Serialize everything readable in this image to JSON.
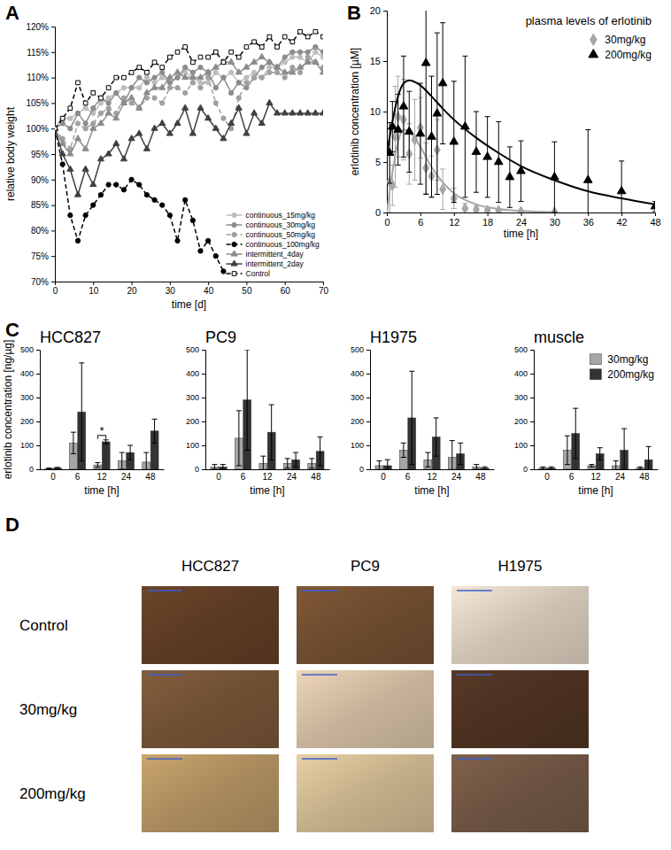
{
  "panels": [
    "A",
    "B",
    "C",
    "D"
  ],
  "chart_data": [
    {
      "type": "line",
      "xlabel": "time [d]",
      "ylabel": "relative body weight",
      "x": [
        0,
        2,
        4,
        6,
        8,
        10,
        12,
        14,
        16,
        18,
        20,
        22,
        24,
        26,
        28,
        30,
        32,
        34,
        36,
        38,
        40,
        42,
        44,
        46,
        48,
        50,
        52,
        54,
        56,
        58,
        60,
        62,
        64,
        66,
        68,
        70
      ],
      "xlim": [
        0,
        70
      ],
      "xticks": [
        0,
        10,
        20,
        30,
        40,
        50,
        60,
        70
      ],
      "ylim": [
        70,
        120
      ],
      "yticks": [
        {
          "value": 70,
          "label": "70%"
        },
        {
          "value": 75,
          "label": "75%"
        },
        {
          "value": 80,
          "label": "80%"
        },
        {
          "value": 85,
          "label": "85%"
        },
        {
          "value": 90,
          "label": "90%"
        },
        {
          "value": 95,
          "label": "95%"
        },
        {
          "value": 100,
          "label": "100%"
        },
        {
          "value": 105,
          "label": "105%"
        },
        {
          "value": 110,
          "label": "110%"
        },
        {
          "value": 115,
          "label": "115%"
        },
        {
          "value": 120,
          "label": "120%"
        }
      ],
      "legend": "bottom-right",
      "series": [
        {
          "name": "continuous_15mg/kg",
          "color": "#bdbdbd",
          "marker": "circle",
          "line_style": "solid",
          "values": [
            100,
            102,
            102,
            103,
            104,
            103,
            105,
            106,
            107,
            108,
            108,
            108,
            110,
            109,
            110,
            109,
            110,
            111,
            110,
            109,
            109,
            111,
            110,
            111,
            109,
            110,
            111,
            110,
            112,
            112,
            113,
            114,
            114,
            113,
            115,
            114
          ]
        },
        {
          "name": "continuous_30mg/kg",
          "color": "#8c8c8c",
          "marker": "circle",
          "line_style": "solid",
          "values": [
            100,
            101,
            100,
            103,
            101,
            104,
            106,
            105,
            107,
            105,
            108,
            110,
            109,
            110,
            111,
            109,
            110,
            112,
            111,
            112,
            111,
            108,
            110,
            107,
            109,
            108,
            110,
            112,
            113,
            112,
            114,
            115,
            115,
            115,
            116,
            115
          ]
        },
        {
          "name": "continuous_50mg/kg",
          "color": "#a0a0a0",
          "marker": "circle",
          "line_style": "dashed",
          "values": [
            100,
            98,
            96,
            101,
            100,
            101,
            103,
            104,
            103,
            106,
            105,
            104,
            106,
            106,
            105,
            108,
            108,
            107,
            109,
            108,
            110,
            105,
            102,
            100,
            106,
            109,
            110,
            110,
            111,
            111,
            110,
            112,
            111,
            114,
            113,
            112
          ]
        },
        {
          "name": "continuous_100mg/kg",
          "color": "#000000",
          "marker": "circle",
          "line_style": "dashed",
          "values": [
            100,
            93,
            83,
            78,
            83,
            85,
            87,
            89,
            89,
            88,
            90,
            89,
            87,
            86,
            85,
            83,
            78,
            86,
            82,
            76,
            78,
            75,
            72,
            null,
            null,
            null,
            null,
            null,
            null,
            null,
            null,
            null,
            null,
            null,
            null,
            null
          ]
        },
        {
          "name": "intermittent_4day",
          "color": "#8c8c8c",
          "marker": "triangle",
          "line_style": "solid",
          "values": [
            100,
            97,
            95,
            98,
            96,
            100,
            101,
            103,
            102,
            105,
            106,
            104,
            107,
            108,
            108,
            110,
            111,
            110,
            110,
            110,
            111,
            112,
            113,
            113,
            111,
            112,
            113,
            114,
            113,
            112,
            111,
            111,
            112,
            113,
            113,
            111
          ]
        },
        {
          "name": "intermittent_2day",
          "color": "#404040",
          "marker": "triangle",
          "line_style": "solid",
          "values": [
            100,
            95,
            92,
            87,
            92,
            89,
            94,
            95,
            97,
            94,
            98,
            99,
            96,
            100,
            101,
            99,
            101,
            104,
            99,
            104,
            102,
            100,
            98,
            101,
            104,
            99,
            103,
            101,
            105,
            103,
            103,
            103,
            103,
            103,
            103,
            103
          ]
        },
        {
          "name": "Control",
          "color": "#000000",
          "marker": "square-open",
          "line_style": "dashed",
          "values": [
            100,
            102,
            104,
            109,
            105,
            107,
            106,
            108,
            110,
            110,
            111,
            112,
            111,
            113,
            112,
            114,
            115,
            116,
            113,
            114,
            114,
            115,
            113,
            115,
            114,
            116,
            117,
            116,
            118,
            116,
            118,
            117,
            119,
            118,
            119,
            118
          ]
        }
      ]
    },
    {
      "type": "scatter",
      "title": "plasma levels of erlotinib",
      "xlabel": "time [h]",
      "ylabel": "erlotinib concentration [µM]",
      "xlim": [
        0,
        48
      ],
      "xticks": [
        0,
        6,
        12,
        18,
        24,
        30,
        36,
        42,
        48
      ],
      "ylim": [
        0,
        20
      ],
      "yticks": [
        0,
        5,
        10,
        15,
        20
      ],
      "legend": "top-right",
      "series": [
        {
          "name": "30mg/kg",
          "color": "#a6a6a6",
          "marker": "diamond",
          "x": [
            0.5,
            1,
            1.5,
            2,
            3,
            4,
            5,
            6,
            7,
            8,
            9,
            10,
            12,
            14,
            16,
            18,
            20,
            24,
            30
          ],
          "values": [
            3,
            2.7,
            7.5,
            9.5,
            9.2,
            5.8,
            7.2,
            8.4,
            4.4,
            3.6,
            6.2,
            2.3,
            1.4,
            0.4,
            0.3,
            0.2,
            0.2,
            0.1,
            0.05
          ],
          "errors": [
            3,
            2,
            5,
            4,
            4,
            3,
            4,
            3,
            2.5,
            2,
            3,
            2,
            1,
            0.5,
            0.3,
            0.2,
            0.2,
            0.1,
            0.1
          ],
          "fit_x": [
            0,
            1,
            2,
            3,
            4,
            6,
            8,
            10,
            12,
            16,
            20,
            24,
            30
          ],
          "fit_values": [
            0,
            4,
            7,
            8.2,
            8,
            6.5,
            4.5,
            3,
            1.9,
            0.8,
            0.35,
            0.15,
            0.05
          ]
        },
        {
          "name": "200mg/kg",
          "color": "#000000",
          "marker": "triangle",
          "x": [
            0.5,
            1,
            2,
            3,
            4,
            6,
            7,
            8,
            9,
            10,
            12,
            14,
            16,
            18,
            20,
            22,
            24,
            30,
            36,
            42,
            48
          ],
          "values": [
            5.9,
            8.5,
            8.2,
            10.5,
            8.0,
            7.8,
            14.8,
            7.5,
            9.8,
            12.8,
            7.0,
            8.5,
            6.0,
            5.5,
            5.0,
            3.5,
            4.1,
            3.5,
            3.2,
            2.1,
            0.6
          ],
          "errors": [
            3,
            2.5,
            3.5,
            5,
            4,
            5,
            13,
            6,
            8,
            6,
            6,
            7,
            4,
            4,
            4,
            3,
            3,
            3.5,
            5,
            3,
            0.5
          ],
          "fit_x": [
            0,
            1,
            2,
            3,
            4,
            6,
            8,
            10,
            12,
            16,
            20,
            24,
            30,
            36,
            42,
            48
          ],
          "fit_values": [
            5.8,
            9,
            11.5,
            12.8,
            13.1,
            12.6,
            11.5,
            10.3,
            9.2,
            7.4,
            5.9,
            4.6,
            3.2,
            2.1,
            1.4,
            0.8
          ]
        }
      ]
    },
    {
      "type": "bar",
      "title": "HCC827",
      "xlabel": "time [h]",
      "ylabel": "erlotinib concentration [ng/µg]",
      "categories": [
        "0",
        "6",
        "12",
        "24",
        "48"
      ],
      "ylim": [
        0,
        500
      ],
      "yticks": [
        0,
        100,
        200,
        300,
        400,
        500
      ],
      "annotations": [
        {
          "text": "*",
          "category": "12"
        }
      ],
      "series": [
        {
          "color": "#a6a6a6",
          "values": [
            3,
            110,
            18,
            35,
            30
          ],
          "errors": [
            2,
            45,
            10,
            35,
            40
          ]
        },
        {
          "color": "#333333",
          "values": [
            5,
            240,
            115,
            70,
            160
          ],
          "errors": [
            3,
            205,
            8,
            30,
            50
          ]
        }
      ]
    },
    {
      "type": "bar",
      "title": "PC9",
      "xlabel": "time [h]",
      "categories": [
        "0",
        "6",
        "12",
        "24",
        "48"
      ],
      "ylim": [
        0,
        500
      ],
      "yticks": [
        0,
        100,
        200,
        300,
        400,
        500
      ],
      "series": [
        {
          "color": "#a6a6a6",
          "values": [
            10,
            130,
            25,
            25,
            25
          ],
          "errors": [
            10,
            115,
            30,
            20,
            20
          ]
        },
        {
          "color": "#333333",
          "values": [
            10,
            290,
            155,
            40,
            75
          ],
          "errors": [
            10,
            210,
            115,
            30,
            60
          ]
        }
      ]
    },
    {
      "type": "bar",
      "title": "H1975",
      "xlabel": "time [h]",
      "categories": [
        "0",
        "6",
        "12",
        "24",
        "48"
      ],
      "ylim": [
        0,
        500
      ],
      "yticks": [
        0,
        100,
        200,
        300,
        400,
        500
      ],
      "series": [
        {
          "color": "#a6a6a6",
          "values": [
            15,
            80,
            40,
            50,
            10
          ],
          "errors": [
            20,
            30,
            30,
            70,
            10
          ]
        },
        {
          "color": "#333333",
          "values": [
            15,
            215,
            135,
            65,
            5
          ],
          "errors": [
            25,
            195,
            80,
            45,
            5
          ]
        }
      ]
    },
    {
      "type": "bar",
      "title": "muscle",
      "xlabel": "time [h]",
      "categories": [
        "0",
        "6",
        "12",
        "24",
        "48"
      ],
      "ylim": [
        0,
        500
      ],
      "yticks": [
        0,
        100,
        200,
        300,
        400,
        500
      ],
      "legend": "top-right",
      "series": [
        {
          "name": "30mg/kg",
          "color": "#a6a6a6",
          "values": [
            5,
            80,
            15,
            15,
            5
          ],
          "errors": [
            5,
            60,
            5,
            20,
            5
          ]
        },
        {
          "name": "200mg/kg",
          "color": "#333333",
          "values": [
            5,
            150,
            65,
            80,
            40
          ],
          "errors": [
            5,
            105,
            25,
            90,
            55
          ]
        }
      ]
    }
  ],
  "images": {
    "columns": [
      "HCC827",
      "PC9",
      "H1975"
    ],
    "rows": [
      "Control",
      "30mg/kg",
      "200mg/kg"
    ]
  }
}
